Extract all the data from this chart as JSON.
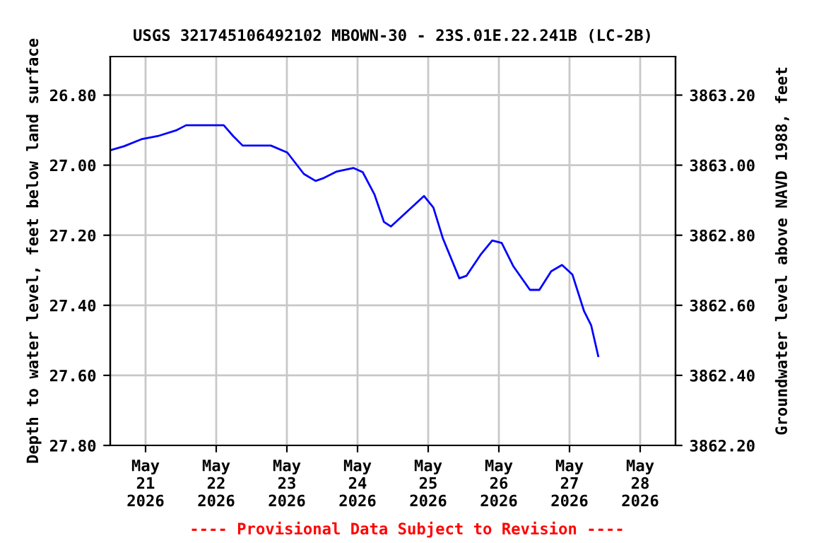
{
  "chart_data": {
    "type": "line",
    "title": "USGS 321745106492102 MBOWN-30 - 23S.01E.22.241B (LC-2B)",
    "ylabel": "Depth to water level, feet below land surface",
    "y2label": "Groundwater level above NAVD 1988, feet",
    "x": [
      "2026-05-20T12:10",
      "2026-05-20T16:40",
      "2026-05-20T22:34",
      "2026-05-21T04:10",
      "2026-05-21T10:34",
      "2026-05-21T13:46",
      "2026-05-22T02:33",
      "2026-05-22T05:46",
      "2026-05-22T08:58",
      "2026-05-22T18:34",
      "2026-05-23T00:09",
      "2026-05-23T05:46",
      "2026-05-23T09:45",
      "2026-05-23T12:09",
      "2026-05-23T16:57",
      "2026-05-23T22:34",
      "2026-05-24T01:46",
      "2026-05-24T05:46",
      "2026-05-24T08:58",
      "2026-05-24T11:22",
      "2026-05-24T22:34",
      "2026-05-25T01:46",
      "2026-05-25T04:57",
      "2026-05-25T10:34",
      "2026-05-25T12:58",
      "2026-05-25T17:46",
      "2026-05-25T21:45",
      "2026-05-26T00:58",
      "2026-05-26T04:57",
      "2026-05-26T10:34",
      "2026-05-26T13:46",
      "2026-05-26T17:46",
      "2026-05-26T21:27",
      "2026-05-27T00:58",
      "2026-05-27T04:57",
      "2026-05-27T07:21",
      "2026-05-27T09:45"
    ],
    "series": [
      {
        "color": "#0000ff",
        "values": [
          26.957,
          26.946,
          26.926,
          26.917,
          26.9,
          26.886,
          26.886,
          26.917,
          26.944,
          26.944,
          26.964,
          27.025,
          27.045,
          27.038,
          27.018,
          27.008,
          27.02,
          27.084,
          27.162,
          27.175,
          27.088,
          27.121,
          27.208,
          27.323,
          27.316,
          27.256,
          27.215,
          27.222,
          27.289,
          27.356,
          27.356,
          27.303,
          27.285,
          27.312,
          27.417,
          27.457,
          27.545
        ]
      }
    ],
    "xlim": [
      "2026-05-20T12:00",
      "2026-05-28T12:00"
    ],
    "xticks": [
      {
        "value": "2026-05-21",
        "label": "May\n21\n2026"
      },
      {
        "value": "2026-05-22",
        "label": "May\n22\n2026"
      },
      {
        "value": "2026-05-23",
        "label": "May\n23\n2026"
      },
      {
        "value": "2026-05-24",
        "label": "May\n24\n2026"
      },
      {
        "value": "2026-05-25",
        "label": "May\n25\n2026"
      },
      {
        "value": "2026-05-26",
        "label": "May\n26\n2026"
      },
      {
        "value": "2026-05-27",
        "label": "May\n27\n2026"
      },
      {
        "value": "2026-05-28",
        "label": "May\n28\n2026"
      }
    ],
    "ylim": [
      27.8,
      26.69
    ],
    "yticks": [
      {
        "value": 26.8,
        "label": "26.80"
      },
      {
        "value": 27.0,
        "label": "27.00"
      },
      {
        "value": 27.2,
        "label": "27.20"
      },
      {
        "value": 27.4,
        "label": "27.40"
      },
      {
        "value": 27.6,
        "label": "27.60"
      },
      {
        "value": 27.8,
        "label": "27.80"
      }
    ],
    "y2lim": [
      3862.2,
      3863.31
    ],
    "y2ticks": [
      {
        "value": 3862.2,
        "label": "3862.20"
      },
      {
        "value": 3862.4,
        "label": "3862.40"
      },
      {
        "value": 3862.6,
        "label": "3862.60"
      },
      {
        "value": 3862.8,
        "label": "3862.80"
      },
      {
        "value": 3863.0,
        "label": "3863.00"
      },
      {
        "value": 3863.2,
        "label": "3863.20"
      }
    ],
    "grid": true,
    "annotations": [
      "---- Provisional Data Subject to Revision ----"
    ]
  }
}
